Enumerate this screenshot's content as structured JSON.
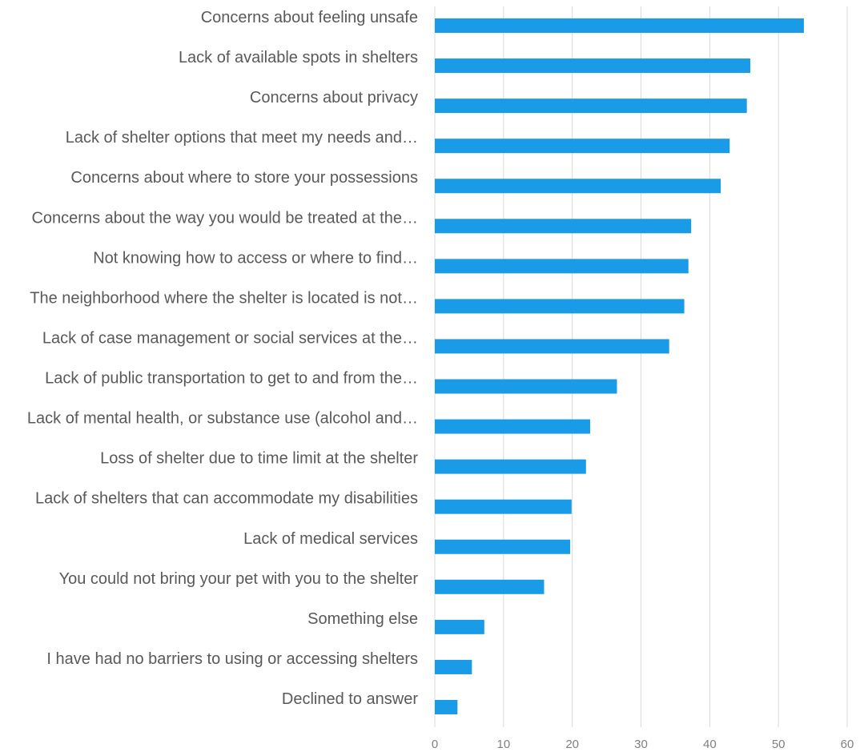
{
  "chart_data": {
    "type": "bar",
    "orientation": "horizontal",
    "title": "",
    "xlabel": "",
    "ylabel": "",
    "categories": [
      "Concerns about feeling unsafe",
      "Lack of available spots in shelters",
      "Concerns about privacy",
      "Lack of shelter options that meet my needs and…",
      "Concerns about where to store your possessions",
      "Concerns about the way you would be treated at the…",
      "Not knowing how to access or where to find…",
      "The neighborhood where the shelter is located is not…",
      "Lack of case management or social services at the…",
      "Lack of public transportation to get to and from the…",
      "Lack of mental health, or substance use (alcohol and…",
      "Loss of shelter due to time limit at the shelter",
      "Lack of shelters that can accommodate my disabilities",
      "Lack of medical services",
      "You could not bring your pet with you to the shelter",
      "Something else",
      "I have had no barriers to using or accessing shelters",
      "Declined to answer"
    ],
    "values": [
      53.7,
      45.9,
      45.4,
      42.9,
      41.6,
      37.3,
      36.9,
      36.3,
      34.1,
      26.5,
      22.6,
      22.0,
      19.9,
      19.7,
      15.9,
      7.2,
      5.4,
      3.3
    ],
    "xlim": [
      0,
      60
    ],
    "x_ticks": [
      "0",
      "10",
      "20",
      "30",
      "40",
      "50",
      "60"
    ],
    "grid": "vertical",
    "legend": "none",
    "colors": {
      "bar": "#1a9be8",
      "grid": "#d9d9d9",
      "label": "#595959",
      "tick": "#808080"
    }
  }
}
